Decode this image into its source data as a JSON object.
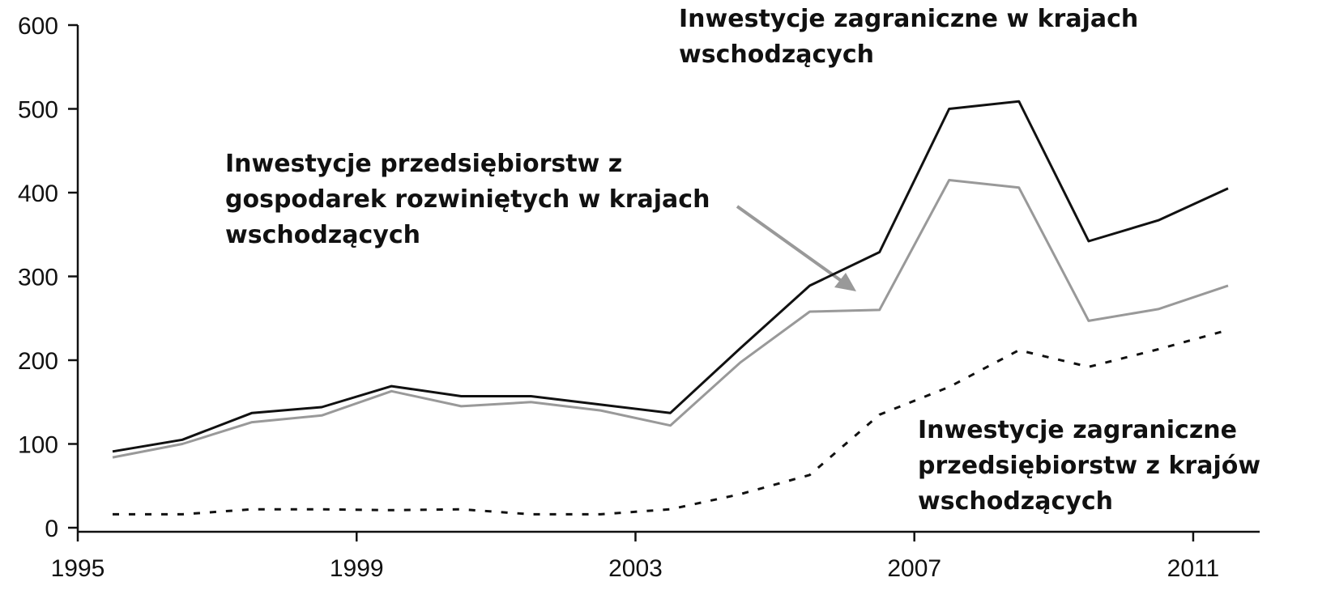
{
  "chart_data": {
    "type": "line",
    "x": [
      1995,
      1996,
      1997,
      1998,
      1999,
      2000,
      2001,
      2002,
      2003,
      2004,
      2005,
      2006,
      2007,
      2008,
      2009,
      2010,
      2011
    ],
    "series": [
      {
        "color": "#111111",
        "style": "solid",
        "values": [
          91,
          105,
          137,
          144,
          169,
          157,
          157,
          147,
          137,
          214,
          289,
          329,
          500,
          509,
          342,
          367,
          405
        ]
      },
      {
        "color": "#999999",
        "style": "solid",
        "values": [
          84,
          100,
          126,
          134,
          163,
          145,
          150,
          140,
          122,
          197,
          258,
          260,
          415,
          406,
          247,
          261,
          289
        ]
      },
      {
        "color": "#111111",
        "style": "dotted",
        "values": [
          16,
          16,
          22,
          22,
          21,
          22,
          16,
          16,
          22,
          40,
          63,
          135,
          168,
          212,
          192,
          213,
          236
        ]
      }
    ],
    "annotations": [
      {
        "lines": [
          "Inwestycje zagraniczne w krajach",
          "wschodzących"
        ]
      },
      {
        "lines": [
          "Inwestycje przedsiębiorstw z",
          "gospodarek rozwiniętych w krajach",
          "wschodzących"
        ]
      },
      {
        "lines": [
          "Inwestycje zagraniczne",
          "przedsiębiorstw z krajów",
          "wschodzących"
        ]
      }
    ],
    "xlim": [
      1995,
      2012
    ],
    "xticks": [
      1995,
      1999,
      2003,
      2007,
      2011
    ],
    "ylim": [
      0,
      600
    ],
    "yticks": [
      0,
      100,
      200,
      300,
      400,
      500,
      600
    ],
    "grid": false
  }
}
